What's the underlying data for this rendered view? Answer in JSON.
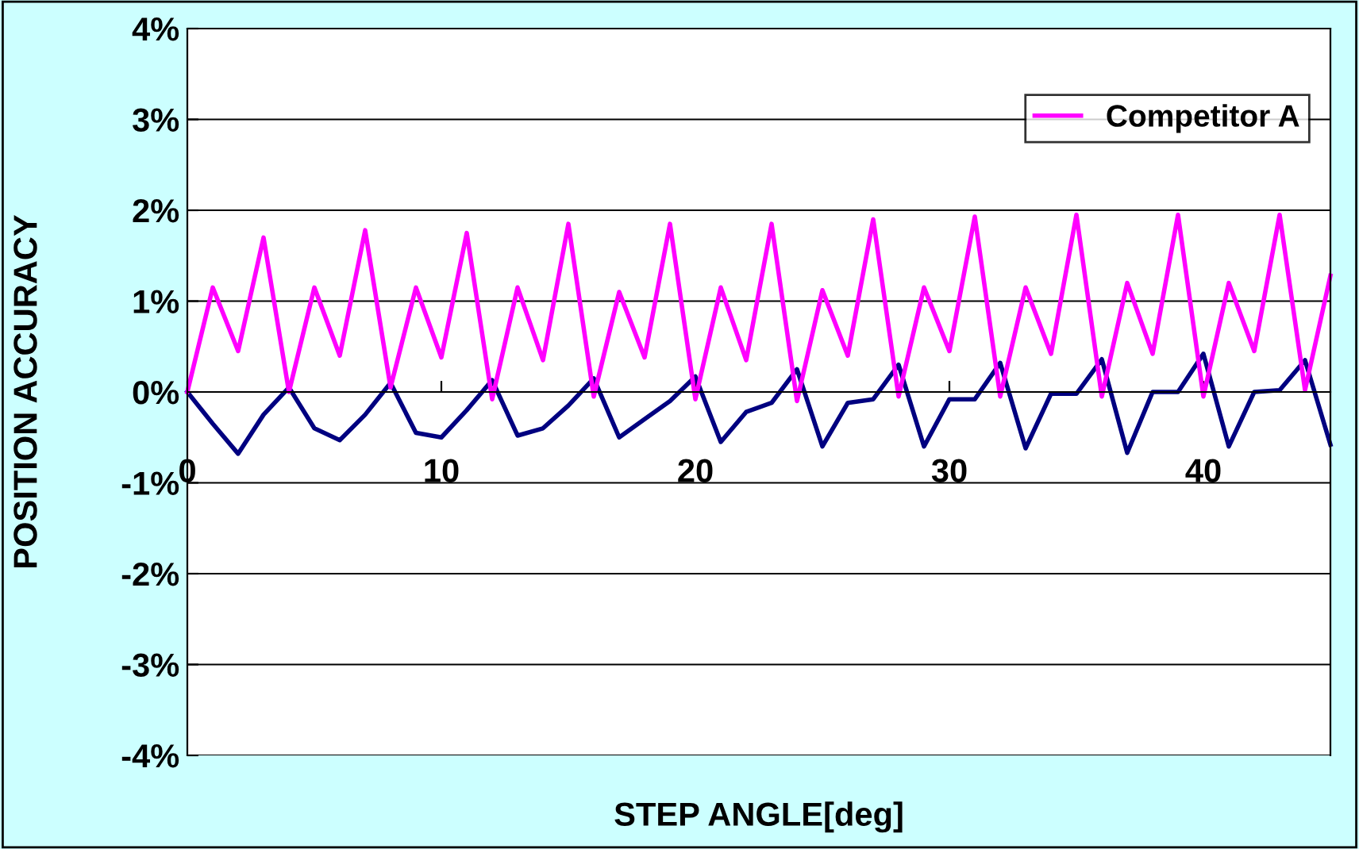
{
  "chart_data": {
    "type": "line",
    "xlabel": "STEP ANGLE[deg]",
    "ylabel": "POSITION ACCURACY",
    "x": [
      0,
      1,
      2,
      3,
      4,
      5,
      6,
      7,
      8,
      9,
      10,
      11,
      12,
      13,
      14,
      15,
      16,
      17,
      18,
      19,
      20,
      21,
      22,
      23,
      24,
      25,
      26,
      27,
      28,
      29,
      30,
      31,
      32,
      33,
      34,
      35,
      36,
      37,
      38,
      39,
      40,
      41,
      42,
      43,
      44,
      45
    ],
    "series": [
      {
        "color": "#000080",
        "values": [
          0,
          -0.35,
          -0.68,
          -0.25,
          0.05,
          -0.4,
          -0.53,
          -0.25,
          0.1,
          -0.45,
          -0.5,
          -0.2,
          0.13,
          -0.48,
          -0.4,
          -0.15,
          0.15,
          -0.5,
          -0.3,
          -0.1,
          0.17,
          -0.55,
          -0.22,
          -0.12,
          0.25,
          -0.6,
          -0.12,
          -0.08,
          0.3,
          -0.6,
          -0.08,
          -0.08,
          0.32,
          -0.62,
          -0.02,
          -0.02,
          0.36,
          -0.67,
          0,
          0,
          0.42,
          -0.6,
          0,
          0.02,
          0.35,
          -0.58
        ]
      },
      {
        "name": "Competitor A",
        "color": "#ff00ff",
        "values": [
          0,
          1.15,
          0.45,
          1.7,
          0,
          1.15,
          0.4,
          1.78,
          0.05,
          1.15,
          0.38,
          1.75,
          -0.08,
          1.15,
          0.35,
          1.85,
          -0.05,
          1.1,
          0.38,
          1.85,
          -0.08,
          1.15,
          0.35,
          1.85,
          -0.1,
          1.12,
          0.4,
          1.9,
          -0.05,
          1.15,
          0.45,
          1.93,
          -0.05,
          1.15,
          0.42,
          1.95,
          -0.05,
          1.2,
          0.42,
          1.95,
          -0.05,
          1.2,
          0.45,
          1.95,
          0.02,
          1.28
        ]
      }
    ],
    "xlim": [
      0,
      45
    ],
    "xticks": [
      0,
      10,
      20,
      30,
      40
    ],
    "ylim": [
      -4,
      4
    ],
    "yticks": [
      {
        "value": -4,
        "label": "-4%"
      },
      {
        "value": -3,
        "label": "-3%"
      },
      {
        "value": -2,
        "label": "-2%"
      },
      {
        "value": -1,
        "label": "-1%"
      },
      {
        "value": 0,
        "label": "0%"
      },
      {
        "value": 1,
        "label": "1%"
      },
      {
        "value": 2,
        "label": "2%"
      },
      {
        "value": 3,
        "label": "3%"
      },
      {
        "value": 4,
        "label": "4%"
      }
    ],
    "grid": "y",
    "legend": "top right",
    "marker": "none",
    "line_style": "solid"
  }
}
